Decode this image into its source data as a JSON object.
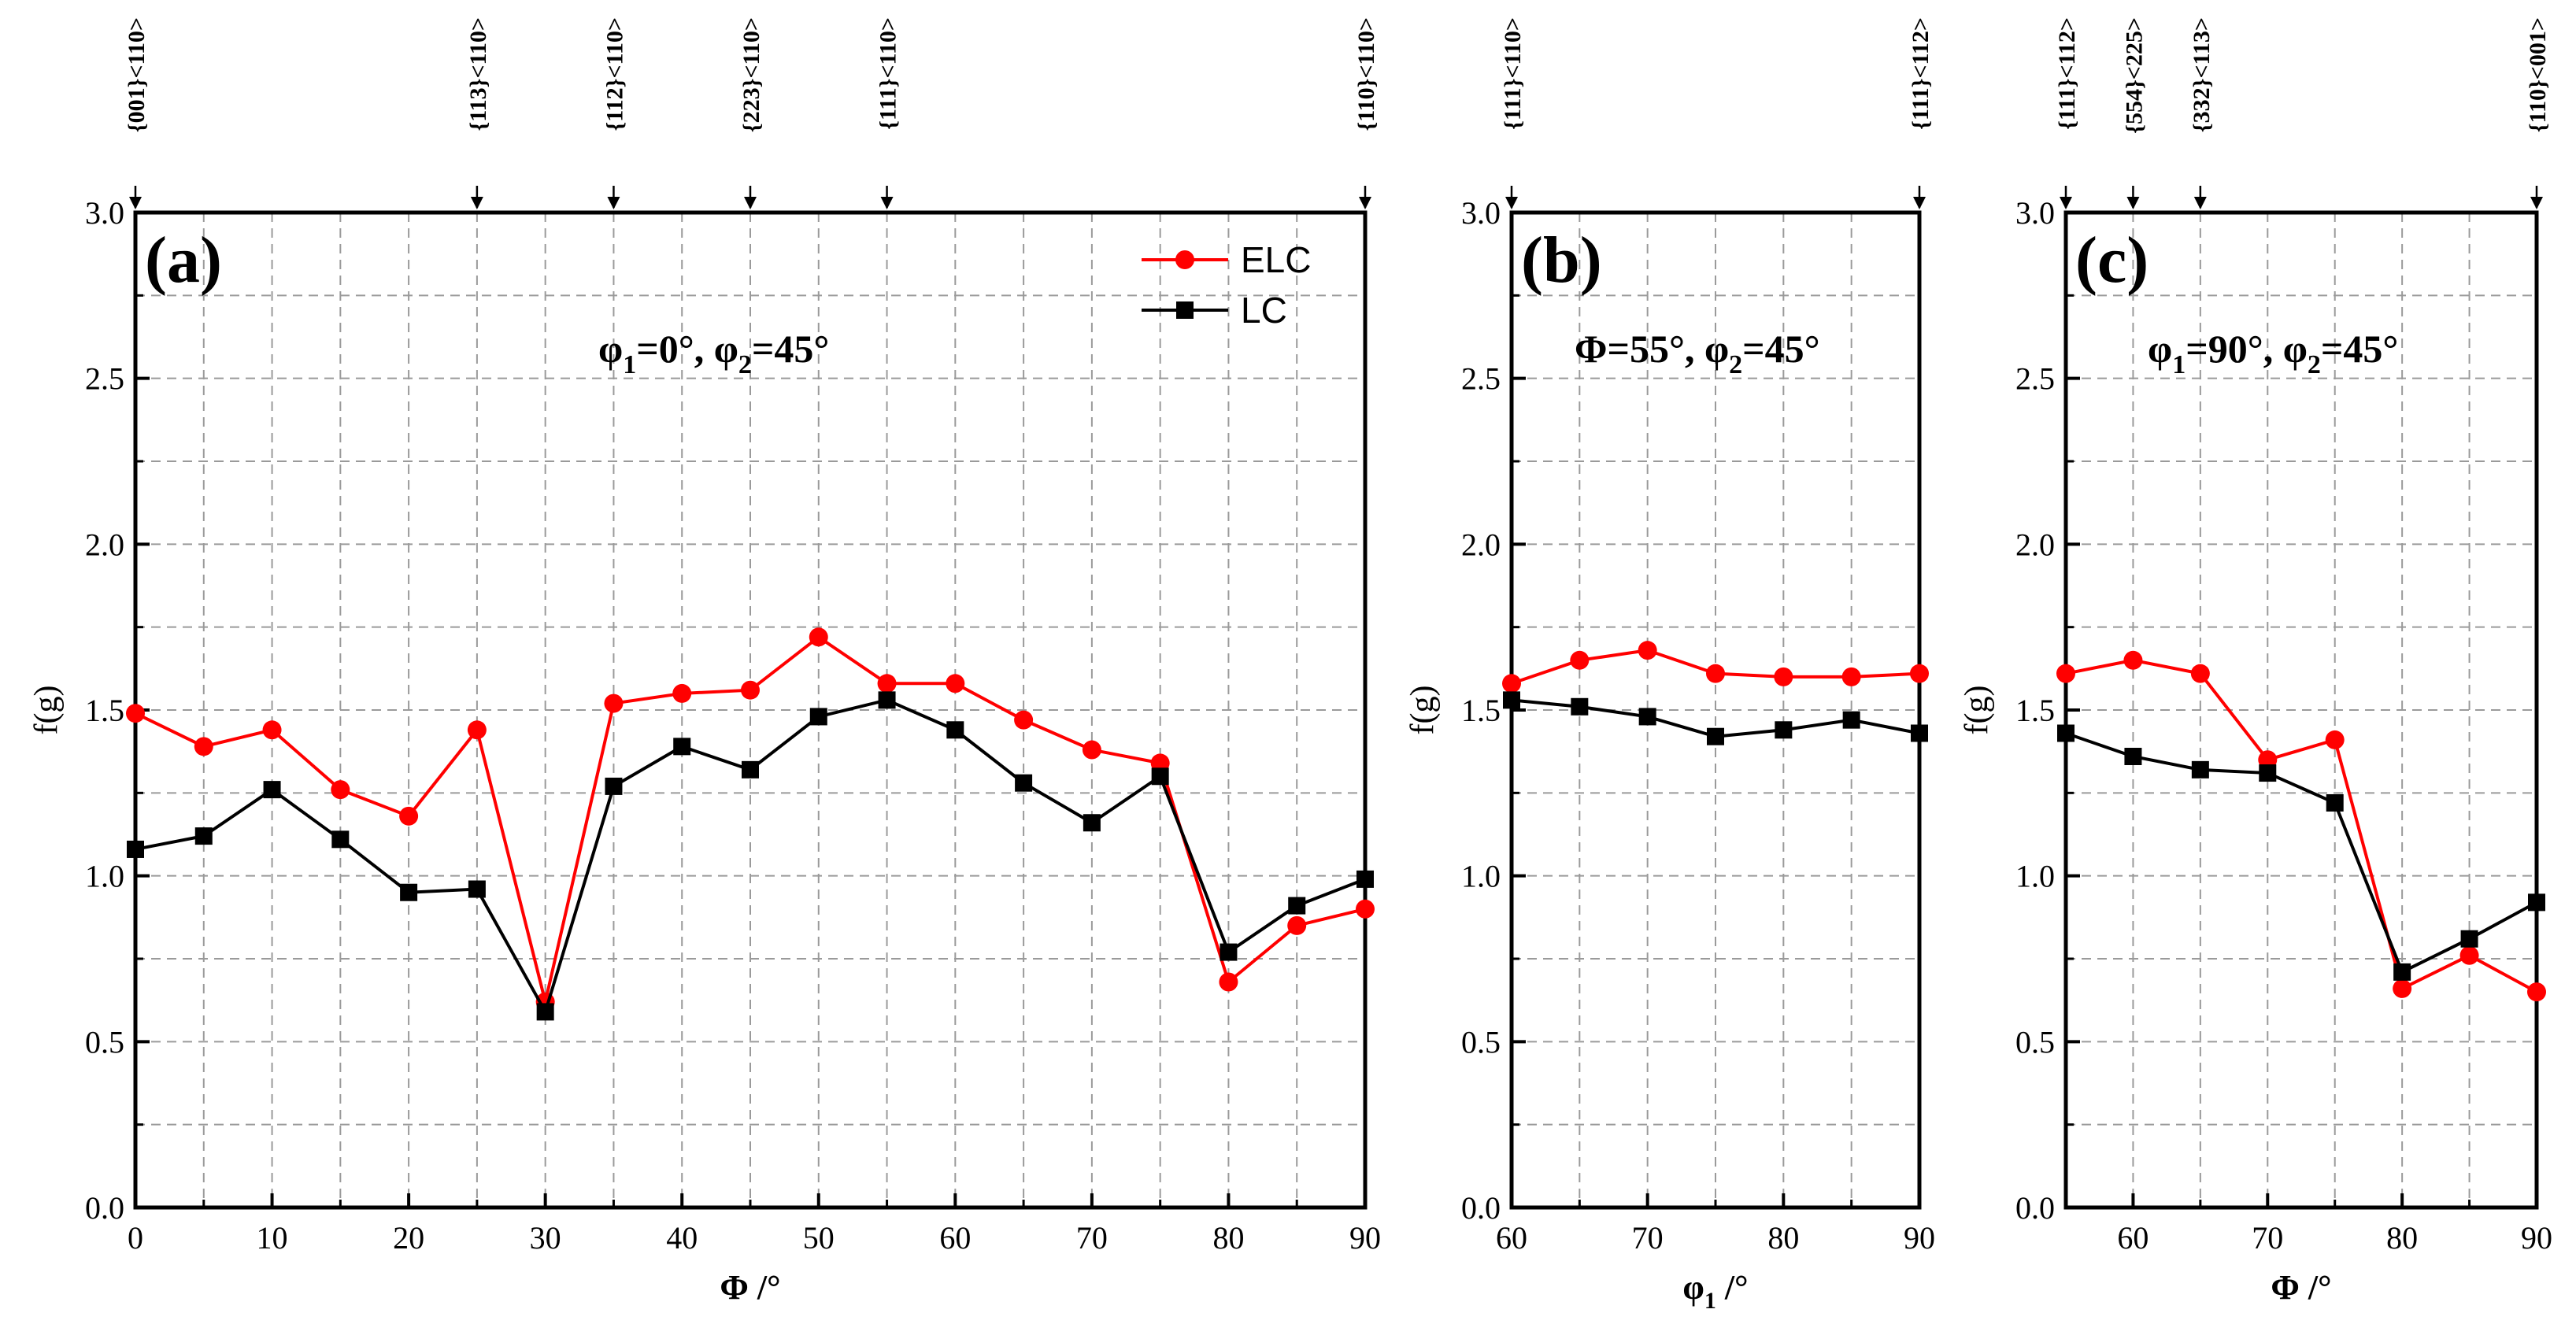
{
  "colors": {
    "elc": "#ff0000",
    "lc": "#000000",
    "grid": "#9a9a9a",
    "axis": "#000000"
  },
  "legend": {
    "elc": "ELC",
    "lc": "LC",
    "placement": "top-right of panel (a)"
  },
  "chart_data": [
    {
      "type": "line",
      "panel_label": "(a)",
      "annotation": {
        "pre": "φ",
        "s1": "1",
        "mid": "=0°, φ",
        "s2": "2",
        "post": "=45°"
      },
      "xlabel": "Φ /°",
      "ylabel": "f(g)",
      "xlim": [
        0,
        90
      ],
      "ylim": [
        0,
        3
      ],
      "xticks": [
        0,
        10,
        20,
        30,
        40,
        50,
        60,
        70,
        80,
        90
      ],
      "xtick_labels": [
        "0",
        "10",
        "20",
        "30",
        "40",
        "50",
        "60",
        "70",
        "80",
        "90"
      ],
      "xminor": [
        5,
        15,
        25,
        35,
        45,
        55,
        65,
        75,
        85
      ],
      "yticks": [
        0,
        0.5,
        1,
        1.5,
        2,
        2.5,
        3
      ],
      "ytick_labels": [
        "0.0",
        "0.5",
        "1.0",
        "1.5",
        "2.0",
        "2.5",
        "3.0"
      ],
      "yminor": [
        0.25,
        0.75,
        1.25,
        1.75,
        2.25,
        2.75
      ],
      "grid": true,
      "top_markers": [
        {
          "x": 0,
          "label": "{001}<110>"
        },
        {
          "x": 25,
          "label": "{113}<110>"
        },
        {
          "x": 35,
          "label": "{112}<110>"
        },
        {
          "x": 45,
          "label": "{223}<110>"
        },
        {
          "x": 55,
          "label": "{111}<110>"
        },
        {
          "x": 90,
          "label": "{110}<110>"
        }
      ],
      "x": [
        0,
        5,
        10,
        15,
        20,
        25,
        30,
        35,
        40,
        45,
        50,
        55,
        60,
        65,
        70,
        75,
        80,
        85,
        90
      ],
      "series": [
        {
          "name": "ELC",
          "values": [
            1.49,
            1.39,
            1.44,
            1.26,
            1.18,
            1.44,
            0.62,
            1.52,
            1.55,
            1.56,
            1.72,
            1.58,
            1.58,
            1.47,
            1.38,
            1.34,
            0.68,
            0.85,
            0.9
          ]
        },
        {
          "name": "LC",
          "values": [
            1.08,
            1.12,
            1.26,
            1.11,
            0.95,
            0.96,
            0.59,
            1.27,
            1.39,
            1.32,
            1.48,
            1.53,
            1.44,
            1.28,
            1.16,
            1.3,
            0.77,
            0.91,
            0.99
          ]
        }
      ]
    },
    {
      "type": "line",
      "panel_label": "(b)",
      "annotation": {
        "pre": "Φ=55°, φ",
        "s1": "",
        "mid": "",
        "s2": "2",
        "post": "=45°"
      },
      "xlabel": "φ /°",
      "xlabel_parts": {
        "pre": "φ",
        "sub": "1",
        "post": " /°"
      },
      "ylabel": "f(g)",
      "xlim": [
        60,
        90
      ],
      "ylim": [
        0,
        3
      ],
      "xticks": [
        60,
        70,
        80,
        90
      ],
      "xtick_labels": [
        "60",
        "70",
        "80",
        "90"
      ],
      "xminor": [
        65,
        75,
        85
      ],
      "yticks": [
        0,
        0.5,
        1,
        1.5,
        2,
        2.5,
        3
      ],
      "ytick_labels": [
        "0.0",
        "0.5",
        "1.0",
        "1.5",
        "2.0",
        "2.5",
        "3.0"
      ],
      "yminor": [
        0.25,
        0.75,
        1.25,
        1.75,
        2.25,
        2.75
      ],
      "grid": true,
      "top_markers": [
        {
          "x": 60,
          "label": "{111}<110>"
        },
        {
          "x": 90,
          "label": "{111}<112>"
        }
      ],
      "x": [
        60,
        65,
        70,
        75,
        80,
        85,
        90
      ],
      "series": [
        {
          "name": "ELC",
          "values": [
            1.58,
            1.65,
            1.68,
            1.61,
            1.6,
            1.6,
            1.61
          ]
        },
        {
          "name": "LC",
          "values": [
            1.53,
            1.51,
            1.48,
            1.42,
            1.44,
            1.47,
            1.43
          ]
        }
      ]
    },
    {
      "type": "line",
      "panel_label": "(c)",
      "annotation": {
        "pre": "φ",
        "s1": "1",
        "mid": "=90°, φ",
        "s2": "2",
        "post": "=45°"
      },
      "xlabel": "Φ /°",
      "ylabel": "f(g)",
      "xlim": [
        55,
        90
      ],
      "ylim": [
        0,
        3
      ],
      "xticks": [
        60,
        70,
        80,
        90
      ],
      "xtick_labels": [
        "60",
        "70",
        "80",
        "90"
      ],
      "xminor": [
        55,
        65,
        75,
        85
      ],
      "yticks": [
        0,
        0.5,
        1,
        1.5,
        2,
        2.5,
        3
      ],
      "ytick_labels": [
        "0.0",
        "0.5",
        "1.0",
        "1.5",
        "2.0",
        "2.5",
        "3.0"
      ],
      "yminor": [
        0.25,
        0.75,
        1.25,
        1.75,
        2.25,
        2.75
      ],
      "grid": true,
      "top_markers": [
        {
          "x": 55,
          "label": "{111}<112>"
        },
        {
          "x": 60,
          "label": "{554}<225>"
        },
        {
          "x": 65,
          "label": "{332}<113>"
        },
        {
          "x": 90,
          "label": "{110}<001>"
        }
      ],
      "x": [
        55,
        60,
        65,
        70,
        75,
        80,
        85,
        90
      ],
      "series": [
        {
          "name": "ELC",
          "values": [
            1.61,
            1.65,
            1.61,
            1.35,
            1.41,
            0.66,
            0.76,
            0.65
          ]
        },
        {
          "name": "LC",
          "values": [
            1.43,
            1.36,
            1.32,
            1.31,
            1.22,
            0.71,
            0.81,
            0.92
          ]
        }
      ]
    }
  ]
}
